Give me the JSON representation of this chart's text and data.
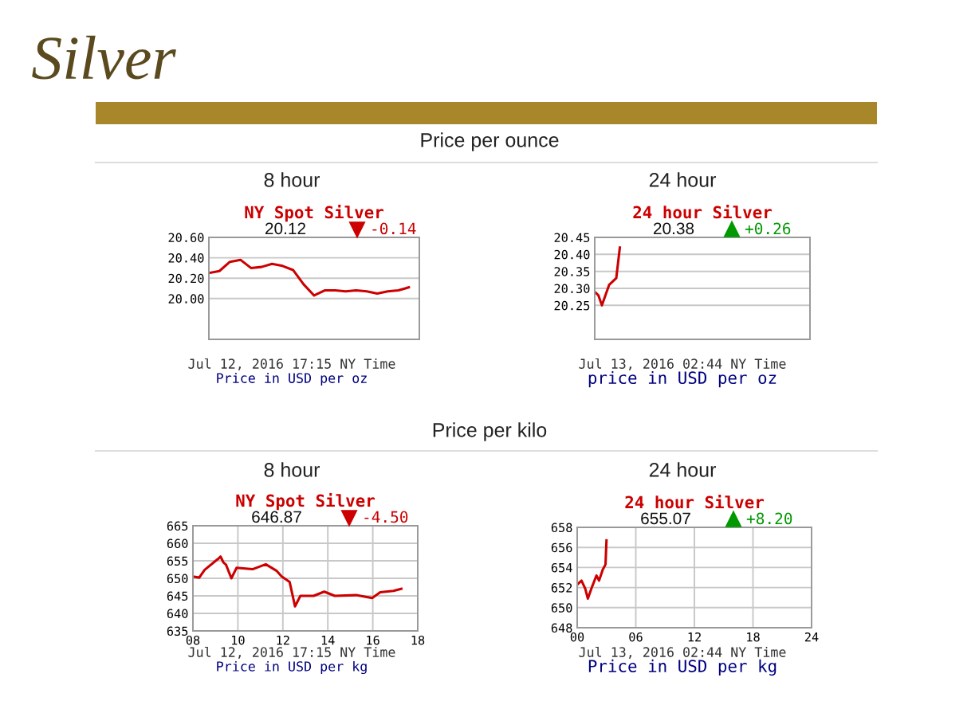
{
  "chart_data": [
    {
      "type": "line",
      "title": "NY Spot Silver",
      "subtitle": "20.12",
      "annotations": [
        "Silver",
        "Price per ounce",
        "8 hour",
        "-0.14",
        "Jul 12, 2016 17:15 NY Time",
        "Price in USD per oz"
      ],
      "categories": [
        null,
        null,
        null,
        null,
        null,
        null,
        null,
        null,
        null,
        null,
        null,
        null,
        null,
        null,
        null,
        null,
        null,
        null,
        null,
        null,
        null
      ],
      "series": [
        {
          "color": "#cc0000",
          "values": [
            20.25,
            20.27,
            20.36,
            20.38,
            20.3,
            20.31,
            20.34,
            20.32,
            20.28,
            20.14,
            20.03,
            20.08,
            20.08,
            20.07,
            20.08,
            20.07,
            20.05,
            20.07,
            20.08,
            20.11,
            null
          ]
        }
      ],
      "ylim": [
        19.6,
        20.6
      ],
      "yticks": [
        {
          "value": 20.0,
          "label": "20.00"
        },
        {
          "value": 20.2,
          "label": "20.20"
        },
        {
          "value": 20.4,
          "label": "20.40"
        },
        {
          "value": 20.6,
          "label": "20.60"
        }
      ],
      "grid": "y",
      "tick_labels": "y"
    },
    {
      "type": "line",
      "title": "24 hour Silver",
      "subtitle": "20.38",
      "annotations": [
        "24 hour",
        "+0.26",
        "Jul 13, 2016 02:44 NY Time",
        "price in USD per oz"
      ],
      "categories": [
        null,
        null,
        null,
        null,
        null,
        null,
        null,
        null,
        null,
        null,
        null,
        null,
        null,
        null,
        null,
        null,
        null,
        null,
        null,
        null,
        null,
        null,
        null,
        null,
        null,
        null,
        null,
        null,
        null,
        null,
        null,
        null,
        null,
        null,
        null,
        null,
        null,
        null,
        null,
        null,
        null,
        null,
        null,
        null,
        null,
        null,
        null,
        null,
        null,
        null,
        null,
        null,
        null,
        null,
        null,
        null,
        null,
        null,
        null,
        null,
        null
      ],
      "series": [
        {
          "color": "#cc0000",
          "values": [
            20.29,
            20.28,
            20.25,
            20.28,
            20.31,
            20.32,
            20.33,
            20.42,
            null,
            null,
            null,
            null,
            null,
            null,
            null,
            null,
            null,
            null,
            null,
            null,
            null,
            null,
            null,
            null,
            null,
            null,
            null,
            null,
            null,
            null,
            null,
            null,
            null,
            null,
            null,
            null,
            null,
            null,
            null,
            null,
            null,
            null,
            null,
            null,
            null,
            null,
            null,
            null,
            null,
            null,
            null,
            null,
            null,
            null,
            null,
            null,
            null,
            null,
            null,
            null,
            null
          ]
        }
      ],
      "ylim": [
        20.15,
        20.45
      ],
      "yticks": [
        20.25,
        {
          "value": 20.3,
          "label": "20.30"
        },
        20.35,
        {
          "value": 20.4,
          "label": "20.40"
        },
        20.45
      ],
      "grid": "y",
      "tick_labels": "y"
    },
    {
      "type": "line",
      "title": "NY Spot Silver",
      "subtitle": "646.87",
      "annotations": [
        "Price per kilo",
        "8 hour",
        "-4.50",
        "Jul 12, 2016 17:15 NY Time",
        "Price in USD per kg"
      ],
      "series": [
        {
          "color": "#cc0000",
          "x": [
            8.0,
            8.28,
            8.52,
            9.11,
            9.23,
            9.35,
            9.47,
            9.71,
            9.94,
            10.65,
            11.24,
            11.71,
            11.95,
            12.3,
            12.54,
            12.78,
            13.37,
            13.84,
            14.31,
            15.26,
            15.97,
            16.33,
            16.92,
            17.27
          ],
          "values": [
            650.5,
            650.2,
            652.4,
            655.5,
            656.2,
            654.6,
            653.9,
            650.0,
            653.0,
            652.6,
            654.0,
            652.2,
            650.5,
            649.0,
            642.0,
            645.0,
            645.0,
            646.2,
            645.0,
            645.2,
            644.4,
            646.0,
            646.4,
            647.0
          ]
        }
      ],
      "xlim": [
        8,
        18
      ],
      "xticks": [
        {
          "value": 8,
          "label": "08"
        },
        {
          "value": 10,
          "label": "10"
        },
        {
          "value": 12,
          "label": "12"
        },
        {
          "value": 14,
          "label": "14"
        },
        {
          "value": 16,
          "label": "16"
        },
        {
          "value": 18,
          "label": "18"
        }
      ],
      "ylim": [
        635,
        665
      ],
      "yticks": [
        635,
        640,
        645,
        650,
        655,
        660,
        665
      ],
      "grid": true
    },
    {
      "type": "line",
      "title": "24 hour Silver",
      "subtitle": "655.07",
      "annotations": [
        "24 hour",
        "+8.20",
        "Jul 13, 2016 02:44 NY Time",
        "Price in USD per kg"
      ],
      "series": [
        {
          "color": "#cc0000",
          "x": [
            0.0,
            0.44,
            0.82,
            1.09,
            1.53,
            1.97,
            2.24,
            2.62,
            2.9,
            3.0
          ],
          "values": [
            652.3,
            652.7,
            651.9,
            650.9,
            652.1,
            653.2,
            652.7,
            653.8,
            654.3,
            656.7
          ]
        }
      ],
      "xlim": [
        0,
        24
      ],
      "xticks": [
        {
          "value": 0,
          "label": "00"
        },
        {
          "value": 6,
          "label": "06"
        },
        {
          "value": 12,
          "label": "12"
        },
        {
          "value": 18,
          "label": "18"
        },
        {
          "value": 24,
          "label": "24"
        }
      ],
      "ylim": [
        648,
        658
      ],
      "yticks": [
        648,
        650,
        652,
        654,
        656,
        658
      ],
      "grid": true
    }
  ]
}
